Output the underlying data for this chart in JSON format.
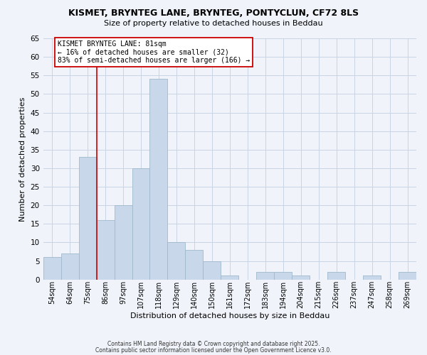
{
  "title": "KISMET, BRYNTEG LANE, BRYNTEG, PONTYCLUN, CF72 8LS",
  "subtitle": "Size of property relative to detached houses in Beddau",
  "xlabel": "Distribution of detached houses by size in Beddau",
  "ylabel": "Number of detached properties",
  "bar_color": "#c8d8ea",
  "bar_edge_color": "#a0b8cc",
  "categories": [
    "54sqm",
    "64sqm",
    "75sqm",
    "86sqm",
    "97sqm",
    "107sqm",
    "118sqm",
    "129sqm",
    "140sqm",
    "150sqm",
    "161sqm",
    "172sqm",
    "183sqm",
    "194sqm",
    "204sqm",
    "215sqm",
    "226sqm",
    "237sqm",
    "247sqm",
    "258sqm",
    "269sqm"
  ],
  "values": [
    6,
    7,
    33,
    16,
    20,
    30,
    54,
    10,
    8,
    5,
    1,
    0,
    2,
    2,
    1,
    0,
    2,
    0,
    1,
    0,
    2
  ],
  "ylim": [
    0,
    65
  ],
  "yticks": [
    0,
    5,
    10,
    15,
    20,
    25,
    30,
    35,
    40,
    45,
    50,
    55,
    60,
    65
  ],
  "vline_color": "#cc0000",
  "annotation_title": "KISMET BRYNTEG LANE: 81sqm",
  "annotation_line1": "← 16% of detached houses are smaller (32)",
  "annotation_line2": "83% of semi-detached houses are larger (166) →",
  "annotation_box_color": "#ffffff",
  "annotation_box_edge": "#cc0000",
  "footer1": "Contains HM Land Registry data © Crown copyright and database right 2025.",
  "footer2": "Contains public sector information licensed under the Open Government Licence v3.0.",
  "background_color": "#f0f4fa",
  "grid_color": "#c8d4e4"
}
